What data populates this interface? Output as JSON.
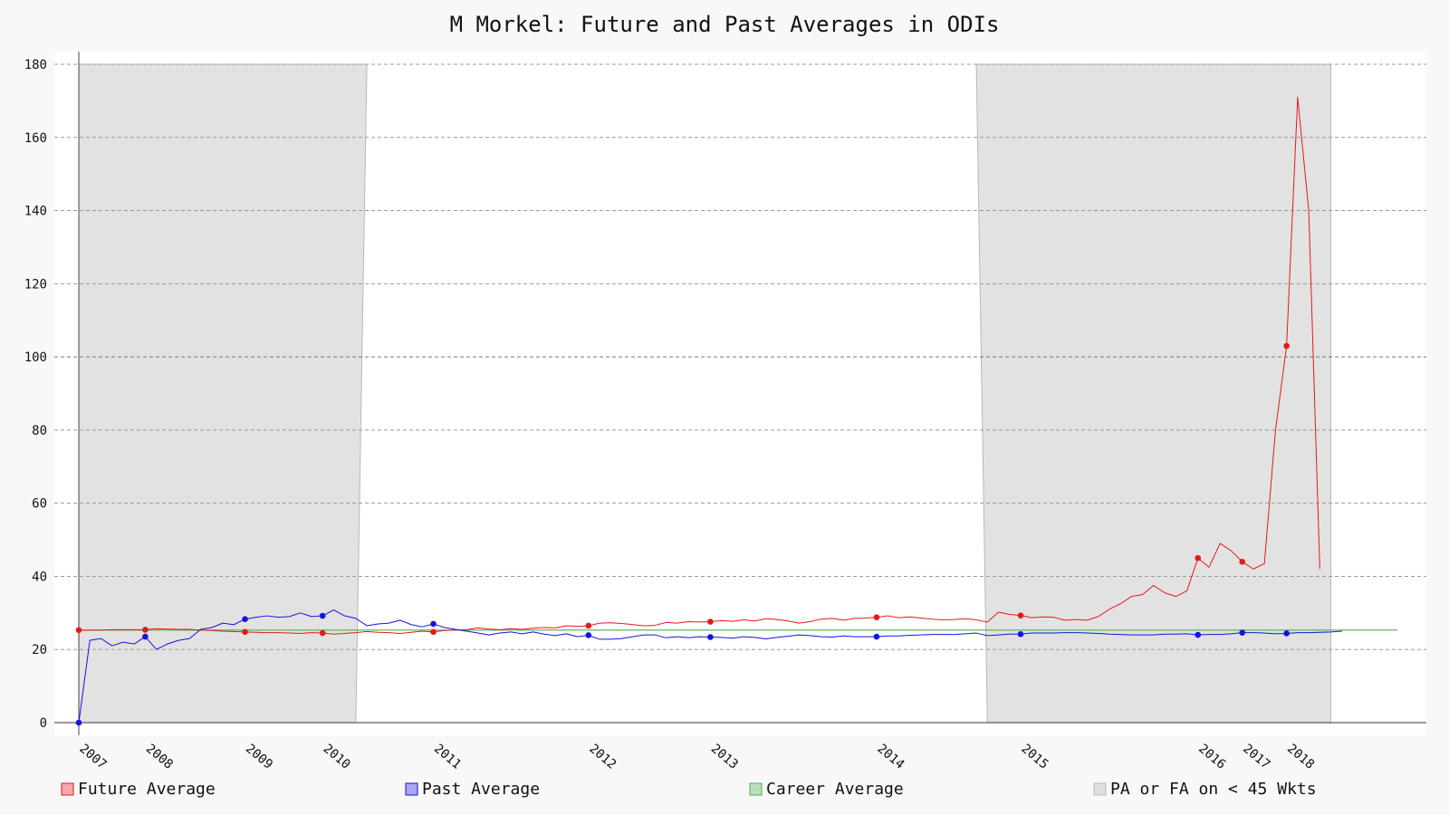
{
  "chart_data": {
    "type": "line",
    "title": "M Morkel: Future and Past Averages in ODIs",
    "xlabel": "",
    "ylabel": "",
    "ylim": [
      0,
      180
    ],
    "yticks": [
      0,
      20,
      40,
      60,
      80,
      100,
      120,
      140,
      160,
      180
    ],
    "grid": "horizontal-dashed",
    "legend_position": "bottom",
    "colors": {
      "future": "#e31a1c",
      "past": "#1414e0",
      "career": "#4caf50",
      "shade": "#e2e2e2"
    },
    "n_points": 120,
    "x_ticks": [
      {
        "index": 0,
        "label": "2007"
      },
      {
        "index": 6,
        "label": "2008"
      },
      {
        "index": 15,
        "label": "2009"
      },
      {
        "index": 22,
        "label": "2010"
      },
      {
        "index": 32,
        "label": "2011"
      },
      {
        "index": 46,
        "label": "2012"
      },
      {
        "index": 57,
        "label": "2013"
      },
      {
        "index": 72,
        "label": "2014"
      },
      {
        "index": 85,
        "label": "2015"
      },
      {
        "index": 101,
        "label": "2016"
      },
      {
        "index": 105,
        "label": "2017"
      },
      {
        "index": 109,
        "label": "2018"
      }
    ],
    "shaded_regions": [
      {
        "from_index": 0,
        "to_index_top": 26,
        "to_index_bottom": 25
      },
      {
        "from_index_top": 81,
        "from_index_bottom": 82,
        "to_index": 113
      }
    ],
    "career_average": 25.3,
    "series": [
      {
        "name": "Future Average",
        "markers": [
          0,
          6,
          15,
          22,
          32,
          46,
          57,
          72,
          85,
          101,
          105,
          109
        ],
        "values": [
          25.3,
          25.3,
          25.3,
          25.4,
          25.4,
          25.4,
          25.4,
          25.7,
          25.6,
          25.5,
          25.5,
          25.3,
          25.2,
          25.0,
          24.9,
          24.8,
          24.7,
          24.6,
          24.6,
          24.5,
          24.4,
          24.6,
          24.5,
          24.2,
          24.4,
          24.6,
          24.9,
          24.7,
          24.6,
          24.4,
          24.7,
          25.0,
          24.8,
          25.2,
          25.3,
          25.4,
          25.9,
          25.6,
          25.4,
          25.7,
          25.5,
          25.8,
          26.0,
          25.9,
          26.5,
          26.3,
          26.5,
          27.2,
          27.3,
          27.1,
          26.8,
          26.5,
          26.6,
          27.4,
          27.2,
          27.6,
          27.5,
          27.6,
          27.9,
          27.7,
          28.1,
          27.8,
          28.4,
          28.2,
          27.8,
          27.2,
          27.6,
          28.3,
          28.5,
          28.0,
          28.5,
          28.6,
          28.8,
          29.2,
          28.7,
          28.9,
          28.6,
          28.3,
          28.1,
          28.2,
          28.4,
          28.1,
          27.5,
          30.2,
          29.6,
          29.3,
          28.7,
          28.9,
          28.8,
          28.0,
          28.2,
          28.0,
          29.0,
          31.0,
          32.5,
          34.5,
          35.0,
          37.5,
          35.5,
          34.5,
          36.0,
          45.0,
          42.5,
          49.0,
          47.0,
          44.0,
          42.0,
          43.5,
          80.0,
          103.0,
          171.0,
          140.0,
          42.0
        ],
        "_note_unused": ""
      },
      {
        "name": "Past Average",
        "markers": [
          0,
          6,
          15,
          22,
          32,
          46,
          57,
          72,
          85,
          101,
          105,
          109
        ],
        "values": [
          0,
          22.5,
          23.0,
          21.0,
          22.0,
          21.5,
          23.5,
          20.0,
          21.5,
          22.5,
          23.0,
          25.5,
          26.0,
          27.2,
          26.8,
          28.3,
          28.8,
          29.2,
          28.8,
          29.0,
          30.0,
          29.0,
          29.2,
          30.8,
          29.2,
          28.5,
          26.5,
          27.0,
          27.2,
          28.0,
          26.8,
          26.2,
          27.0,
          26.0,
          25.5,
          25.0,
          24.5,
          24.0,
          24.5,
          24.8,
          24.3,
          24.8,
          24.2,
          23.8,
          24.3,
          23.5,
          23.9,
          22.8,
          22.8,
          23.0,
          23.5,
          24.0,
          24.0,
          23.2,
          23.5,
          23.2,
          23.5,
          23.4,
          23.3,
          23.1,
          23.5,
          23.3,
          22.9,
          23.3,
          23.6,
          24.0,
          23.8,
          23.5,
          23.4,
          23.7,
          23.5,
          23.5,
          23.5,
          23.7,
          23.7,
          23.9,
          24.0,
          24.1,
          24.1,
          24.1,
          24.3,
          24.5,
          23.8,
          24.0,
          24.2,
          24.2,
          24.5,
          24.5,
          24.5,
          24.6,
          24.6,
          24.5,
          24.4,
          24.2,
          24.1,
          24.0,
          24.0,
          24.0,
          24.2,
          24.2,
          24.3,
          24.0,
          24.1,
          24.1,
          24.3,
          24.6,
          24.6,
          24.5,
          24.3,
          24.4,
          24.6,
          24.6,
          24.7,
          24.8,
          25.0
        ]
      }
    ],
    "legend": [
      {
        "key": "future",
        "label": "Future Average"
      },
      {
        "key": "past",
        "label": "Past Average"
      },
      {
        "key": "career",
        "label": "Career Average"
      },
      {
        "key": "shade",
        "label": "PA or FA on < 45 Wkts"
      }
    ]
  }
}
